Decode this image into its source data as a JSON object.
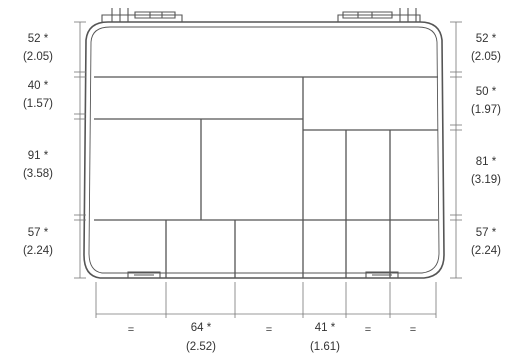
{
  "left_dims": [
    {
      "mm": "52 *",
      "inch": "(2.05)"
    },
    {
      "mm": "40 *",
      "inch": "(1.57)"
    },
    {
      "mm": "91 *",
      "inch": "(3.58)"
    },
    {
      "mm": "57 *",
      "inch": "(2.24)"
    }
  ],
  "right_dims": [
    {
      "mm": "52 *",
      "inch": "(2.05)"
    },
    {
      "mm": "50 *",
      "inch": "(1.97)"
    },
    {
      "mm": "81 *",
      "inch": "(3.19)"
    },
    {
      "mm": "57 *",
      "inch": "(2.24)"
    }
  ],
  "bottom_dims": [
    {
      "mm": "=",
      "inch": ""
    },
    {
      "mm": "64 *",
      "inch": "(2.52)"
    },
    {
      "mm": "=",
      "inch": ""
    },
    {
      "mm": "41 *",
      "inch": "(1.61)"
    },
    {
      "mm": "=",
      "inch": ""
    },
    {
      "mm": "=",
      "inch": ""
    }
  ],
  "colors": {
    "outline": "#555555",
    "dim_line": "#777777",
    "text": "#333333"
  }
}
